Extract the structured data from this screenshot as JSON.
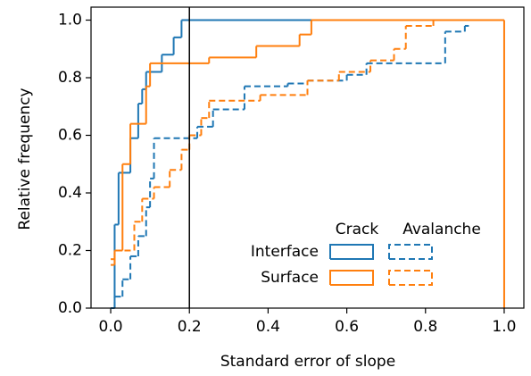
{
  "chart_data": {
    "type": "step",
    "xlabel": "Standard error of slope",
    "ylabel": "Relative frequency",
    "xlim": [
      -0.05,
      1.05
    ],
    "ylim": [
      0,
      1.045
    ],
    "xticks": [
      {
        "value": 0,
        "label": "0.0"
      },
      0.2,
      0.4,
      0.6,
      0.8,
      {
        "value": 1,
        "label": "1.0"
      }
    ],
    "yticks": [
      {
        "value": 0,
        "label": "0.0"
      },
      0.2,
      0.4,
      0.6,
      0.8,
      {
        "value": 1,
        "label": "1.0"
      }
    ],
    "vline": 0.2,
    "legend": {
      "columns": [
        {
          "label": "Crack",
          "dashed": false
        },
        {
          "label": "Avalanche",
          "dashed": true
        }
      ],
      "rows": [
        {
          "label": "Interface",
          "color": "#1f77b4"
        },
        {
          "label": "Surface",
          "color": "#ff7f0e"
        }
      ]
    },
    "series": [
      {
        "color": "#1f77b4",
        "dashed": false,
        "x": [
          0.0,
          0.01,
          0.02,
          0.05,
          0.07,
          0.08,
          0.09,
          0.13,
          0.16,
          0.18,
          0.53
        ],
        "values": [
          0.0,
          0.29,
          0.47,
          0.59,
          0.71,
          0.76,
          0.82,
          0.88,
          0.94,
          1.0,
          1.0
        ]
      },
      {
        "color": "#ff7f0e",
        "dashed": false,
        "x": [
          0.0,
          0.01,
          0.03,
          0.05,
          0.09,
          0.1,
          0.25,
          0.37,
          0.48,
          0.51,
          1.0
        ],
        "values": [
          0.15,
          0.2,
          0.5,
          0.64,
          0.77,
          0.85,
          0.87,
          0.91,
          0.95,
          1.0,
          0.0
        ]
      },
      {
        "color": "#1f77b4",
        "dashed": true,
        "x": [
          0.0,
          0.01,
          0.03,
          0.05,
          0.07,
          0.09,
          0.1,
          0.11,
          0.22,
          0.26,
          0.34,
          0.45,
          0.5,
          0.6,
          0.65,
          0.85,
          0.9,
          0.91
        ],
        "values": [
          0.0,
          0.04,
          0.1,
          0.18,
          0.25,
          0.35,
          0.45,
          0.59,
          0.63,
          0.69,
          0.77,
          0.78,
          0.79,
          0.81,
          0.85,
          0.96,
          0.98,
          0.98
        ]
      },
      {
        "color": "#ff7f0e",
        "dashed": true,
        "x": [
          0.0,
          0.01,
          0.06,
          0.08,
          0.11,
          0.15,
          0.18,
          0.2,
          0.23,
          0.25,
          0.38,
          0.5,
          0.58,
          0.66,
          0.72,
          0.75,
          0.82
        ],
        "values": [
          0.17,
          0.2,
          0.3,
          0.38,
          0.42,
          0.48,
          0.55,
          0.6,
          0.66,
          0.72,
          0.74,
          0.79,
          0.82,
          0.86,
          0.9,
          0.98,
          1.0
        ]
      }
    ]
  }
}
